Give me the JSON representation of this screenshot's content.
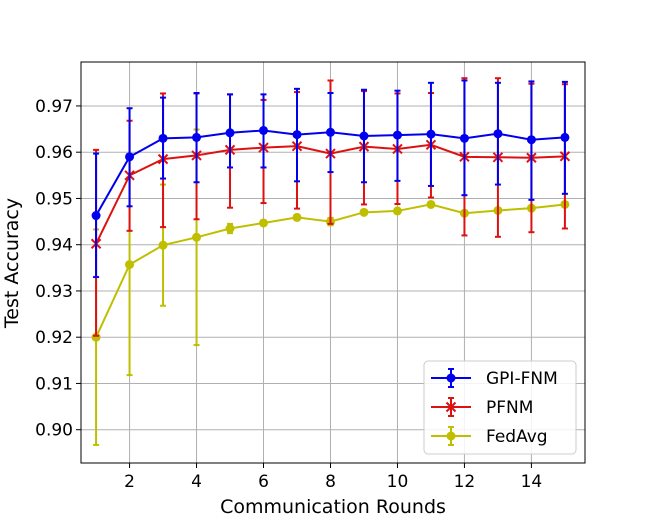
{
  "chart_data": {
    "type": "line",
    "title": "",
    "xlabel": "Communication Rounds",
    "ylabel": "Test Accuracy",
    "xlim": [
      0.55,
      15.6
    ],
    "ylim": [
      0.8928,
      0.9795
    ],
    "x_ticks": [
      2,
      4,
      6,
      8,
      10,
      12,
      14
    ],
    "y_ticks": [
      0.9,
      0.91,
      0.92,
      0.93,
      0.94,
      0.95,
      0.96,
      0.97
    ],
    "x_tick_labels": [
      "2",
      "4",
      "6",
      "8",
      "10",
      "12",
      "14"
    ],
    "y_tick_labels": [
      "0.90",
      "0.91",
      "0.92",
      "0.93",
      "0.94",
      "0.95",
      "0.96",
      "0.97"
    ],
    "grid": true,
    "legend_position": "lower-right",
    "x": [
      1,
      2,
      3,
      4,
      5,
      6,
      7,
      8,
      9,
      10,
      11,
      12,
      13,
      14,
      15
    ],
    "series": [
      {
        "name": "GPI-FNM",
        "color": "#0000ee",
        "marker": "circle",
        "values": [
          0.9463,
          0.959,
          0.963,
          0.9632,
          0.9642,
          0.9647,
          0.9638,
          0.9643,
          0.9635,
          0.9637,
          0.9639,
          0.963,
          0.964,
          0.9627,
          0.9632
        ],
        "err_low": [
          0.933,
          0.9483,
          0.9543,
          0.9535,
          0.9567,
          0.9567,
          0.9537,
          0.9557,
          0.9535,
          0.9538,
          0.9527,
          0.9507,
          0.953,
          0.9497,
          0.951
        ],
        "err_high": [
          0.9597,
          0.9695,
          0.9718,
          0.9728,
          0.9725,
          0.9725,
          0.9737,
          0.9728,
          0.9735,
          0.9733,
          0.975,
          0.9755,
          0.975,
          0.9753,
          0.9752
        ]
      },
      {
        "name": "PFNM",
        "color": "#dd1111",
        "marker": "x",
        "values": [
          0.9402,
          0.955,
          0.9585,
          0.9593,
          0.9605,
          0.961,
          0.9613,
          0.9597,
          0.9612,
          0.9607,
          0.9616,
          0.959,
          0.9589,
          0.9588,
          0.9591
        ],
        "err_low": [
          0.9203,
          0.943,
          0.9438,
          0.9455,
          0.948,
          0.949,
          0.9478,
          0.9445,
          0.9487,
          0.9488,
          0.9502,
          0.942,
          0.9417,
          0.9427,
          0.9435
        ],
        "err_high": [
          0.9605,
          0.9668,
          0.9727,
          0.9727,
          0.9725,
          0.9713,
          0.973,
          0.9755,
          0.9732,
          0.9727,
          0.9728,
          0.976,
          0.976,
          0.9748,
          0.9747
        ]
      },
      {
        "name": "FedAvg",
        "color": "#bfbf00",
        "marker": "circle",
        "values": [
          0.92,
          0.9357,
          0.9399,
          0.9416,
          0.9435,
          0.9447,
          0.9459,
          0.945,
          0.947,
          0.9473,
          0.9487,
          0.9468,
          0.9474,
          0.9479,
          0.9487
        ],
        "err_low": [
          0.8967,
          0.9118,
          0.9268,
          0.9183,
          0.9425,
          0.9447,
          0.9459,
          0.9442,
          0.947,
          0.9473,
          0.9487,
          0.9468,
          0.9474,
          0.9479,
          0.9487
        ],
        "err_high": [
          0.9433,
          0.9596,
          0.953,
          0.9649,
          0.9445,
          0.9447,
          0.9459,
          0.9458,
          0.947,
          0.9473,
          0.9487,
          0.9468,
          0.9474,
          0.9479,
          0.9487
        ]
      }
    ]
  }
}
